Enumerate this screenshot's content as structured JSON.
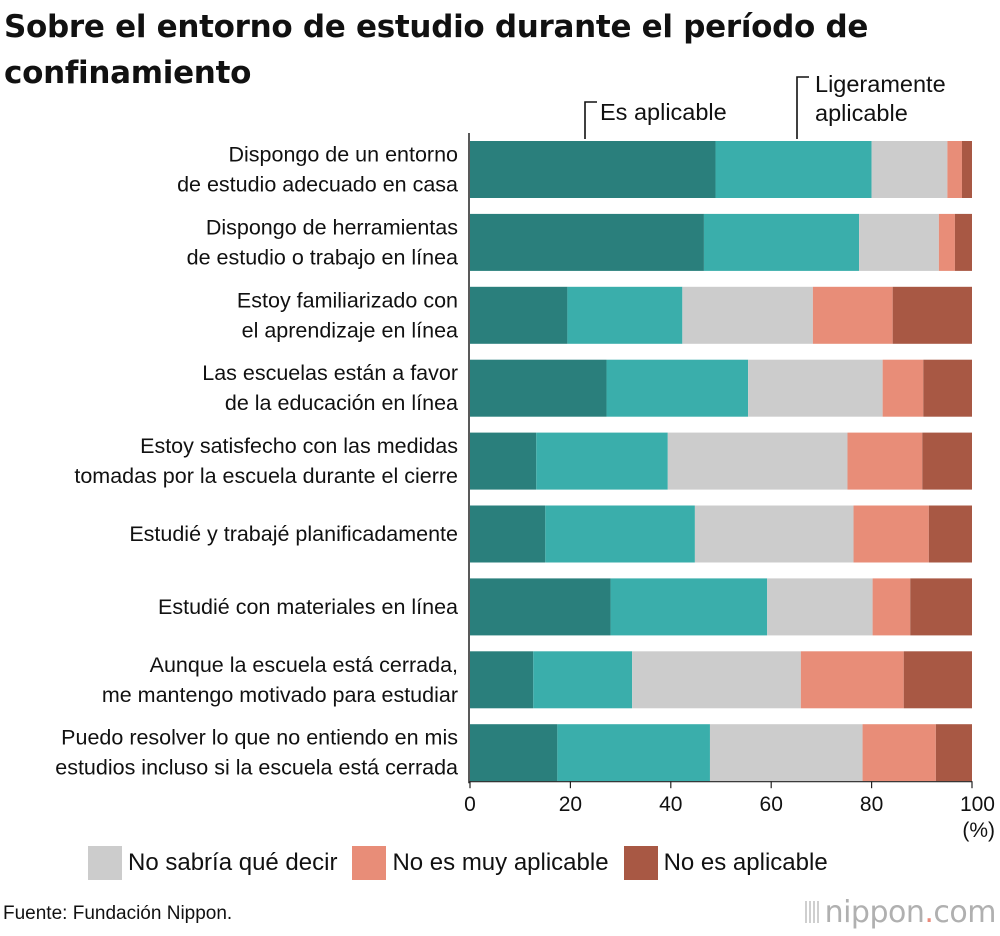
{
  "title": "Sobre el entorno de estudio durante el período de confinamiento",
  "source": "Fuente: Fundación Nippon.",
  "brand": {
    "name": "nippon",
    "dot": ".",
    "tld": "com"
  },
  "colors": {
    "es_aplicable": "#2a7f7c",
    "ligeramente_aplicable": "#3aaeab",
    "no_sabria": "#cccccc",
    "no_muy_aplicable": "#e88d78",
    "no_aplicable": "#a85844"
  },
  "annotations": {
    "es_aplicable": "Es aplicable",
    "ligeramente": [
      "Ligeramente",
      "aplicable"
    ]
  },
  "legend": [
    "No sabría qué decir",
    "No es muy aplicable",
    "No es aplicable"
  ],
  "chart_data": {
    "type": "bar",
    "orientation": "horizontal",
    "stacked": true,
    "title": "Sobre el entorno de estudio durante el período de confinamiento",
    "xlabel": "(%)",
    "xlim": [
      0,
      100
    ],
    "xticks": [
      "0",
      "20",
      "40",
      "60",
      "80",
      "100"
    ],
    "unit_label": "(%)",
    "categories": [
      [
        "Dispongo de un entorno",
        "de estudio adecuado en casa"
      ],
      [
        "Dispongo de herramientas",
        "de estudio o trabajo en línea"
      ],
      [
        "Estoy familiarizado con",
        "el aprendizaje en línea"
      ],
      [
        "Las escuelas están a favor",
        "de la educación en línea"
      ],
      [
        "Estoy satisfecho con las medidas",
        "tomadas por la escuela durante el cierre"
      ],
      [
        "Estudié y trabajé planificadamente"
      ],
      [
        "Estudié con materiales en línea"
      ],
      [
        "Aunque la escuela está cerrada,",
        "me mantengo motivado para estudiar"
      ],
      [
        "Puedo resolver lo que no entiendo en mis",
        "estudios incluso si la escuela está cerrada"
      ]
    ],
    "series": [
      {
        "name": "Es aplicable",
        "color": "#2a7f7c",
        "values": [
          48.9,
          46.6,
          19.4,
          27.2,
          13.2,
          15.0,
          28.0,
          12.6,
          17.4
        ]
      },
      {
        "name": "Ligeramente aplicable",
        "color": "#3aaeab",
        "values": [
          31.1,
          30.9,
          22.9,
          28.2,
          26.2,
          29.8,
          31.2,
          19.7,
          30.4
        ]
      },
      {
        "name": "No sabría qué decir",
        "color": "#cccccc",
        "values": [
          15.1,
          15.9,
          26.0,
          26.8,
          35.8,
          31.6,
          21.0,
          33.6,
          30.4
        ]
      },
      {
        "name": "No es muy aplicable",
        "color": "#e88d78",
        "values": [
          2.9,
          3.2,
          15.9,
          8.1,
          14.9,
          15.0,
          7.5,
          20.5,
          14.6
        ]
      },
      {
        "name": "No es aplicable",
        "color": "#a85844",
        "values": [
          2.0,
          3.4,
          15.8,
          9.7,
          9.9,
          8.6,
          12.3,
          13.6,
          7.2
        ]
      }
    ]
  }
}
